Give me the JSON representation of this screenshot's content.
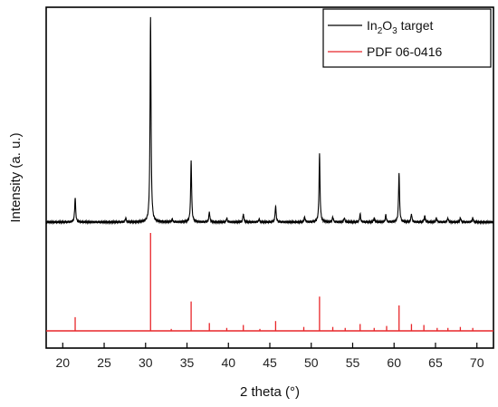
{
  "chart_data": {
    "type": "line",
    "xlabel": "2 theta (°)",
    "ylabel": "Intensity (a. u.)",
    "xlim": [
      18,
      72
    ],
    "xticks": [
      20,
      25,
      30,
      35,
      40,
      45,
      50,
      55,
      60,
      65,
      70
    ],
    "yticks_labels": false,
    "legend_position": "top-right",
    "series": [
      {
        "name": "In2O3 target",
        "style": "line",
        "color": "#000000",
        "peaks": [
          {
            "x": 21.5,
            "y": 0.12
          },
          {
            "x": 27.6,
            "y": 0.02
          },
          {
            "x": 30.6,
            "y": 1.0
          },
          {
            "x": 33.2,
            "y": 0.015
          },
          {
            "x": 35.5,
            "y": 0.3
          },
          {
            "x": 37.7,
            "y": 0.05
          },
          {
            "x": 39.8,
            "y": 0.02
          },
          {
            "x": 41.8,
            "y": 0.04
          },
          {
            "x": 43.7,
            "y": 0.015
          },
          {
            "x": 45.7,
            "y": 0.08
          },
          {
            "x": 49.2,
            "y": 0.025
          },
          {
            "x": 51.0,
            "y": 0.33
          },
          {
            "x": 52.6,
            "y": 0.025
          },
          {
            "x": 54.0,
            "y": 0.02
          },
          {
            "x": 55.9,
            "y": 0.04
          },
          {
            "x": 57.6,
            "y": 0.02
          },
          {
            "x": 59.0,
            "y": 0.035
          },
          {
            "x": 60.6,
            "y": 0.24
          },
          {
            "x": 62.1,
            "y": 0.04
          },
          {
            "x": 63.7,
            "y": 0.03
          },
          {
            "x": 65.1,
            "y": 0.02
          },
          {
            "x": 66.5,
            "y": 0.02
          },
          {
            "x": 68.0,
            "y": 0.02
          },
          {
            "x": 69.5,
            "y": 0.02
          }
        ]
      },
      {
        "name": "PDF 06-0416",
        "style": "sticks",
        "color": "#e8262a",
        "peaks": [
          {
            "x": 21.5,
            "y": 0.14
          },
          {
            "x": 30.6,
            "y": 1.0
          },
          {
            "x": 33.1,
            "y": 0.02
          },
          {
            "x": 35.5,
            "y": 0.3
          },
          {
            "x": 37.7,
            "y": 0.08
          },
          {
            "x": 39.8,
            "y": 0.03
          },
          {
            "x": 41.8,
            "y": 0.06
          },
          {
            "x": 43.8,
            "y": 0.02
          },
          {
            "x": 45.7,
            "y": 0.1
          },
          {
            "x": 49.1,
            "y": 0.04
          },
          {
            "x": 51.0,
            "y": 0.35
          },
          {
            "x": 52.6,
            "y": 0.04
          },
          {
            "x": 54.1,
            "y": 0.03
          },
          {
            "x": 55.9,
            "y": 0.07
          },
          {
            "x": 57.6,
            "y": 0.03
          },
          {
            "x": 59.1,
            "y": 0.05
          },
          {
            "x": 60.6,
            "y": 0.26
          },
          {
            "x": 62.1,
            "y": 0.07
          },
          {
            "x": 63.6,
            "y": 0.06
          },
          {
            "x": 65.2,
            "y": 0.03
          },
          {
            "x": 66.5,
            "y": 0.03
          },
          {
            "x": 68.0,
            "y": 0.04
          },
          {
            "x": 69.5,
            "y": 0.03
          }
        ]
      }
    ],
    "legend": {
      "entries": [
        {
          "label_main": "In",
          "sub1": "2",
          "mid": "O",
          "sub2": "3",
          "tail": " target",
          "color": "#000000"
        },
        {
          "label": "PDF 06-0416",
          "color": "#e8262a"
        }
      ]
    }
  }
}
